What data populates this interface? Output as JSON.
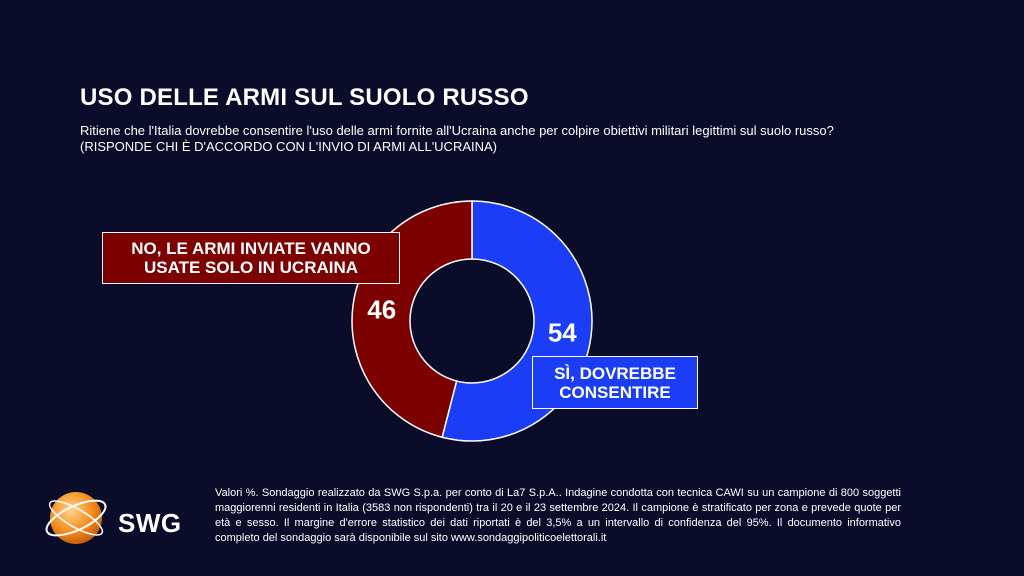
{
  "header": {
    "title": "USO DELLE ARMI SUL SUOLO RUSSO",
    "subtitle": "Ritiene che l'Italia dovrebbe consentire l'uso delle armi fornite all'Ucraina anche per colpire obiettivi militari legittimi sul suolo russo? (RISPONDE CHI È D'ACCORDO CON L'INVIO DI ARMI ALL'UCRAINA)"
  },
  "chart_data": {
    "type": "pie",
    "title": "USO DELLE ARMI SUL SUOLO RUSSO",
    "categories": [
      "SÌ, DOVREBBE CONSENTIRE",
      "NO, LE ARMI INVIATE VANNO USATE SOLO IN UCRAINA"
    ],
    "values": [
      54,
      46
    ],
    "colors": [
      "#1a3df5",
      "#7d0000"
    ],
    "donut": true
  },
  "labels": {
    "no": "NO, LE ARMI INVIATE VANNO USATE SOLO IN UCRAINA",
    "si": "SÌ, DOVREBBE CONSENTIRE"
  },
  "footer": {
    "note": "Valori %. Sondaggio realizzato da SWG S.p.a. per conto di La7 S.p.A.. Indagine condotta con tecnica CAWI su un campione di 800 soggetti maggiorenni residenti in Italia (3583 non rispondenti) tra il 20 e il 23 settembre 2024. Il campione è stratificato per zona e prevede quote per età e sesso. Il margine d'errore statistico dei dati riportati è del 3,5% a un intervallo di confidenza del 95%. Il documento informativo completo del sondaggio sarà disponibile sul sito www.sondaggipoliticoelettorali.it"
  },
  "logo": {
    "text": "SWG",
    "icon": "globe-logo-icon",
    "color": "#f28c1c"
  }
}
